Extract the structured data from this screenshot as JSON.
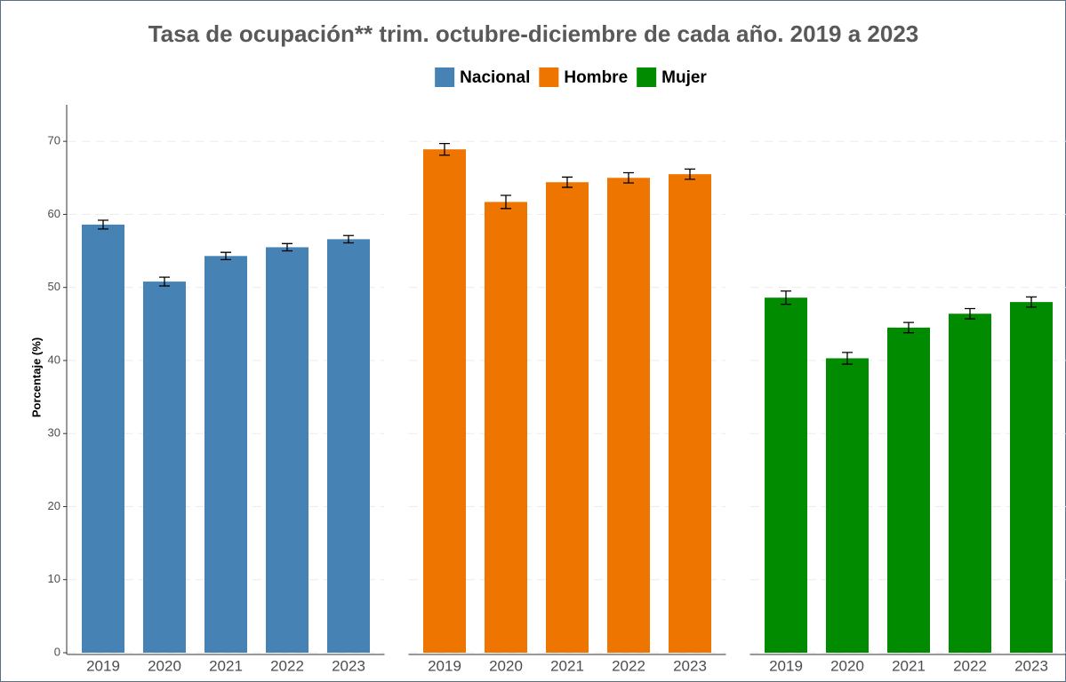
{
  "chart_data": {
    "type": "bar",
    "title": "Tasa de ocupación** trim. octubre-diciembre de cada año. 2019 a 2023",
    "y_label": "Porcentaje (%)",
    "categories": [
      "2019",
      "2020",
      "2021",
      "2022",
      "2023"
    ],
    "series": [
      {
        "name": "Nacional",
        "color": "#4682b4",
        "values": [
          58.6,
          50.8,
          54.3,
          55.5,
          56.6
        ],
        "errors": [
          0.6,
          0.6,
          0.5,
          0.5,
          0.5
        ]
      },
      {
        "name": "Hombre",
        "color": "#ee7600",
        "values": [
          68.9,
          61.7,
          64.4,
          65.0,
          65.5
        ],
        "errors": [
          0.8,
          0.9,
          0.7,
          0.7,
          0.7
        ]
      },
      {
        "name": "Mujer",
        "color": "#008b00",
        "values": [
          48.6,
          40.3,
          44.5,
          46.4,
          48.0
        ],
        "errors": [
          0.9,
          0.8,
          0.7,
          0.7,
          0.7
        ]
      }
    ],
    "ylim": [
      0,
      75
    ],
    "yticks": [
      0,
      10,
      20,
      30,
      40,
      50,
      60,
      70
    ],
    "grid": true,
    "legend": "top"
  }
}
